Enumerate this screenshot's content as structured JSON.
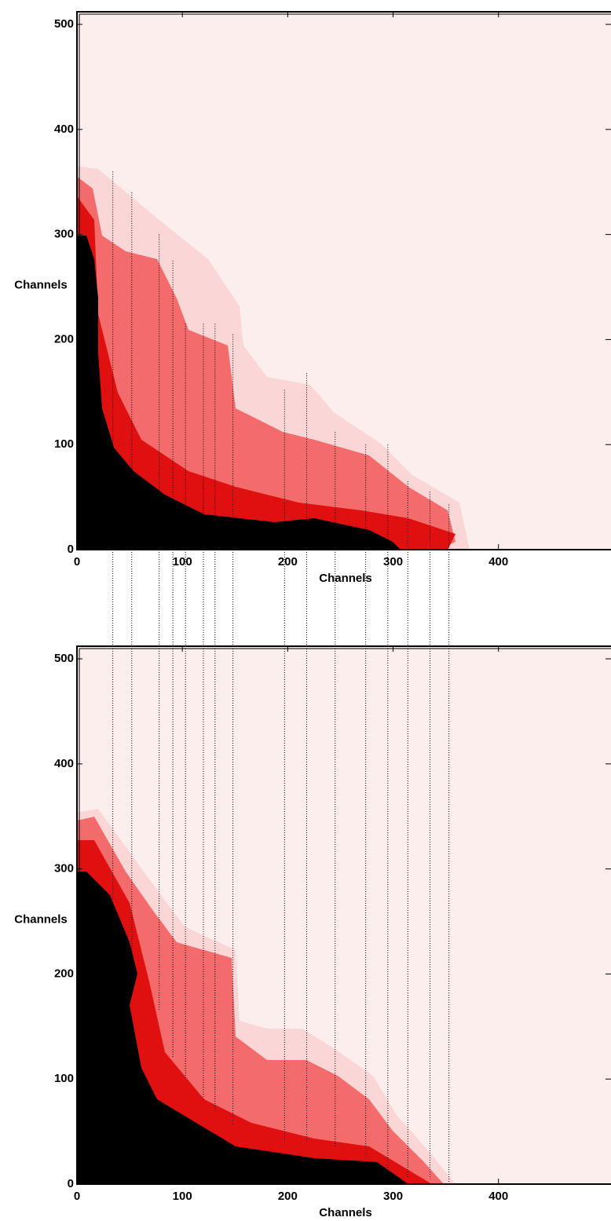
{
  "chart_data": [
    {
      "type": "heatmap",
      "xlabel": "Channels",
      "ylabel": "Channels",
      "xlim": [
        0,
        512
      ],
      "ylim": [
        0,
        512
      ],
      "xticks": [
        0,
        100,
        200,
        300,
        400
      ],
      "yticks": [
        0,
        100,
        200,
        300,
        400,
        500
      ],
      "vlines": [
        34,
        52,
        78,
        91,
        103,
        120,
        131,
        148,
        197,
        218,
        245,
        274,
        295,
        314,
        335,
        353
      ],
      "vline_tops": [
        360,
        340,
        300,
        275,
        215,
        215,
        215,
        205,
        152,
        168,
        112,
        100,
        100,
        65,
        55,
        43
      ]
    },
    {
      "type": "heatmap",
      "xlabel": "Channels",
      "ylabel": "Channels",
      "xlim": [
        0,
        512
      ],
      "ylim": [
        0,
        512
      ],
      "xticks": [
        0,
        100,
        200,
        300,
        400
      ],
      "yticks": [
        0,
        100,
        200,
        300,
        400,
        500
      ],
      "vlines": [
        34,
        52,
        78,
        91,
        103,
        120,
        131,
        148,
        197,
        218,
        245,
        274,
        295,
        314,
        335,
        353
      ],
      "vline_bottoms": [
        270,
        200,
        165,
        120,
        100,
        80,
        70,
        55,
        40,
        40,
        35,
        25,
        15,
        5,
        5,
        0
      ]
    }
  ]
}
